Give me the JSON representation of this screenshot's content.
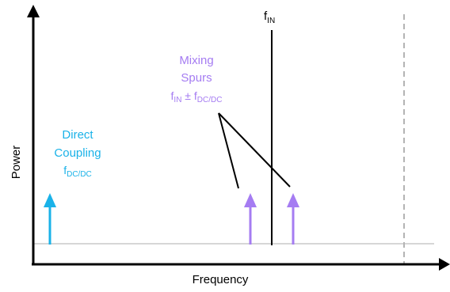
{
  "axes": {
    "x_label": "Frequency",
    "y_label": "Power"
  },
  "fin_label": {
    "main": "f",
    "sub": "IN"
  },
  "mixing": {
    "line1": "Mixing",
    "line2": "Spurs",
    "formula": {
      "a": "f",
      "a_sub": "IN",
      "op": " ± ",
      "b": "f",
      "b_sub": "DC/DC"
    }
  },
  "direct": {
    "line1": "Direct",
    "line2": "Coupling",
    "formula": {
      "a": "f",
      "a_sub": "DC/DC"
    }
  },
  "colors": {
    "cyan": "#1ab2e8",
    "purple": "#a57cf2",
    "axis": "#000000",
    "noise_floor": "#c8c8c8",
    "dashed_limit": "#b4b4b4"
  }
}
